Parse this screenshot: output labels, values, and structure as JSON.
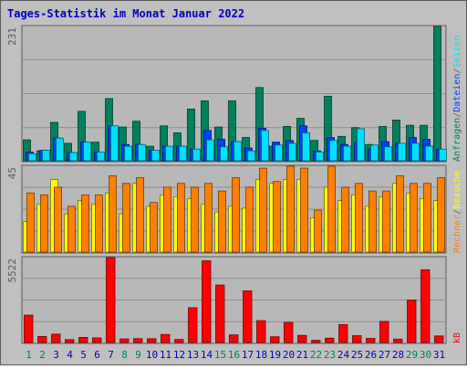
{
  "title": "Tages-Statistik im Monat Januar 2022",
  "colors": {
    "background": "#C0C0C0",
    "plot_bg": "#B8B8B8",
    "border": "#5C5C5C",
    "title": "#0000C0",
    "grid": "#8E8E8E",
    "anfragen": "#00805C",
    "dateien": "#0040FF",
    "seiten": "#00E0FF",
    "besuche": "#FFFF00",
    "rechner": "#FF8000",
    "kb": "#FF0000",
    "weekend_day_label": "#00805C",
    "weekday_day_label": "#0000C0"
  },
  "chart_data": {
    "type": "bar",
    "x": [
      "1",
      "2",
      "3",
      "4",
      "5",
      "6",
      "7",
      "8",
      "9",
      "10",
      "11",
      "12",
      "13",
      "14",
      "15",
      "16",
      "17",
      "18",
      "19",
      "20",
      "21",
      "22",
      "23",
      "24",
      "25",
      "26",
      "27",
      "28",
      "29",
      "30",
      "31"
    ],
    "weekend_days": [
      "1",
      "2",
      "8",
      "9",
      "15",
      "16",
      "22",
      "23",
      "29",
      "30"
    ],
    "panels": [
      {
        "id": "hits",
        "ymax_label": "231",
        "ylim": [
          0,
          231
        ],
        "legend": [
          {
            "label": "Anfragen",
            "color_key": "anfragen"
          },
          {
            "label": "/",
            "color_key": "border"
          },
          {
            "label": "Dateien",
            "color_key": "dateien"
          },
          {
            "label": "/",
            "color_key": "border"
          },
          {
            "label": "Seiten",
            "color_key": "seiten"
          }
        ],
        "series": [
          {
            "name": "Anfragen",
            "color_key": "anfragen",
            "values": [
              36,
              17,
              66,
              30,
              85,
              32,
              107,
              58,
              68,
              25,
              60,
              48,
              89,
              103,
              58,
              103,
              40,
              126,
              25,
              59,
              73,
              35,
              111,
              42,
              57,
              28,
              59,
              70,
              61,
              61,
              231
            ]
          },
          {
            "name": "Dateien",
            "color_key": "dateien",
            "values": [
              15,
              18,
              39,
              14,
              32,
              15,
              60,
              28,
              28,
              18,
              25,
              25,
              20,
              52,
              37,
              33,
              22,
              56,
              32,
              35,
              60,
              17,
              40,
              28,
              32,
              20,
              33,
              30,
              40,
              37,
              20
            ]
          },
          {
            "name": "Seiten",
            "color_key": "seiten",
            "values": [
              12,
              18,
              39,
              14,
              32,
              15,
              60,
              25,
              28,
              18,
              25,
              25,
              20,
              36,
              24,
              33,
              17,
              52,
              27,
              30,
              48,
              15,
              35,
              25,
              55,
              27,
              24,
              30,
              30,
              25,
              20
            ]
          }
        ]
      },
      {
        "id": "visits",
        "ymax_label": "45",
        "ylim": [
          0,
          45
        ],
        "legend": [
          {
            "label": "Rechner",
            "color_key": "rechner"
          },
          {
            "label": "/",
            "color_key": "border"
          },
          {
            "label": "Besuche",
            "color_key": "besuche"
          }
        ],
        "series": [
          {
            "name": "Besuche",
            "color_key": "besuche",
            "values": [
              16,
              25,
              38,
              20,
              27,
              25,
              31,
              20,
              36,
              24,
              30,
              29,
              28,
              25,
              21,
              24,
              23,
              38,
              36,
              38,
              38,
              18,
              34,
              27,
              30,
              24,
              29,
              36,
              31,
              28,
              27
            ]
          },
          {
            "name": "Rechner",
            "color_key": "rechner",
            "values": [
              31,
              30,
              34,
              24,
              30,
              30,
              40,
              36,
              39,
              26,
              34,
              36,
              34,
              36,
              32,
              39,
              34,
              44,
              37,
              45,
              44,
              22,
              45,
              34,
              36,
              32,
              32,
              40,
              36,
              36,
              39
            ]
          }
        ]
      },
      {
        "id": "volume",
        "ymax_label": "5522",
        "ylim": [
          0,
          5522
        ],
        "legend": [
          {
            "label": "kB",
            "color_key": "kb"
          }
        ],
        "series": [
          {
            "name": "kB",
            "color_key": "kb",
            "values": [
              1780,
              391,
              542,
              187,
              333,
              301,
              5522,
              235,
              252,
              244,
              521,
              197,
              2264,
              5309,
              3737,
              494,
              3359,
              1421,
              372,
              1307,
              466,
              141,
              284,
              1160,
              444,
              266,
              1372,
              224,
              2757,
              4728,
              427
            ]
          }
        ]
      }
    ]
  }
}
